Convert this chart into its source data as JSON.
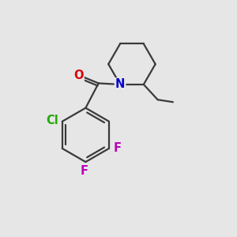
{
  "background_color": "#e6e6e6",
  "bond_color": "#3a3a3a",
  "bond_width": 1.6,
  "atom_colors": {
    "O": "#dd0000",
    "N": "#0000cc",
    "Cl": "#22aa00",
    "F": "#bb00bb"
  },
  "font_size_atoms": 10.5
}
